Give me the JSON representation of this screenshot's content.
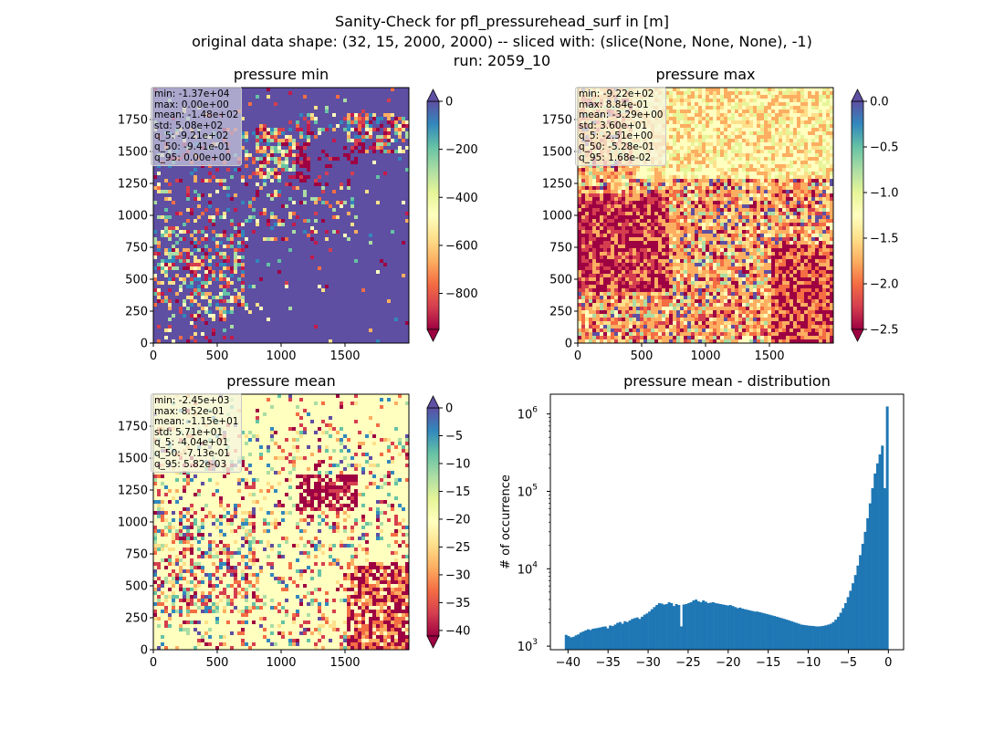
{
  "header": {
    "line1": "Sanity-Check for pfl_pressurehead_surf in [m]",
    "line2": "original data shape: (32, 15, 2000, 2000) -- sliced with: (slice(None, None, None), -1)",
    "line3": "run: 2059_10"
  },
  "chart_data": [
    {
      "type": "heatmap",
      "title": "pressure min",
      "xlim": [
        0,
        2000
      ],
      "ylim": [
        0,
        2000
      ],
      "xticks": [
        "0",
        "500",
        "1000",
        "1500"
      ],
      "yticks": [
        "0",
        "250",
        "500",
        "750",
        "1000",
        "1250",
        "1500",
        "1750"
      ],
      "colormap": "Spectral",
      "colorbar": {
        "ticks": [
          "0",
          "−200",
          "−400",
          "−600",
          "−800"
        ],
        "range": [
          -950,
          0
        ],
        "extend": "both"
      },
      "stats": [
        "min: -1.37e+04",
        "max: 0.00e+00",
        "mean: -1.48e+02",
        "std: 5.08e+02",
        "q_5: -9.21e+02",
        "q_50: -9.41e-01",
        "q_95: 0.00e+00"
      ]
    },
    {
      "type": "heatmap",
      "title": "pressure max",
      "xlim": [
        0,
        2000
      ],
      "ylim": [
        0,
        2000
      ],
      "xticks": [
        "0",
        "500",
        "1000",
        "1500"
      ],
      "yticks": [
        "0",
        "250",
        "500",
        "750",
        "1000",
        "1250",
        "1500",
        "1750"
      ],
      "colormap": "Spectral",
      "colorbar": {
        "ticks": [
          "0.0",
          "−0.5",
          "−1.0",
          "−1.5",
          "−2.0",
          "−2.5"
        ],
        "range": [
          -2.5,
          0
        ],
        "extend": "both"
      },
      "stats": [
        "min: -9.22e+02",
        "max: 8.84e-01",
        "mean: -3.29e+00",
        "std: 3.60e+01",
        "q_5: -2.51e+00",
        "q_50: -5.28e-01",
        "q_95: 1.68e-02"
      ]
    },
    {
      "type": "heatmap",
      "title": "pressure mean",
      "xlim": [
        0,
        2000
      ],
      "ylim": [
        0,
        2000
      ],
      "xticks": [
        "0",
        "500",
        "1000",
        "1500"
      ],
      "yticks": [
        "0",
        "250",
        "500",
        "750",
        "1000",
        "1250",
        "1500",
        "1750"
      ],
      "colormap": "Spectral",
      "colorbar": {
        "ticks": [
          "0",
          "−5",
          "−10",
          "−15",
          "−20",
          "−25",
          "−30",
          "−35",
          "−40"
        ],
        "range": [
          -41,
          0
        ],
        "extend": "both"
      },
      "stats": [
        "min: -2.45e+03",
        "max: 8.52e-01",
        "mean: -1.15e+01",
        "std: 5.71e+01",
        "q_5: -4.04e+01",
        "q_50: -7.13e-01",
        "q_95: 5.82e-03"
      ]
    },
    {
      "type": "bar",
      "title": "pressure mean - distribution",
      "ylabel": "# of occurrence",
      "yscale": "log",
      "xlim": [
        -42.2,
        1.9
      ],
      "ylim": [
        900,
        1800000
      ],
      "xticks": [
        "−40",
        "−35",
        "−30",
        "−25",
        "−20",
        "−15",
        "−10",
        "−5",
        "0"
      ],
      "xtick_values": [
        -40,
        -35,
        -30,
        -25,
        -20,
        -15,
        -10,
        -5,
        0
      ],
      "yticks": [
        "10",
        "10",
        "10",
        "10"
      ],
      "ytick_exponents": [
        "3",
        "4",
        "5",
        "6"
      ],
      "ytick_values": [
        1000,
        10000,
        100000,
        1000000
      ],
      "bar_color": "#1f77b4",
      "bin_range": [
        -40.4,
        0.0
      ],
      "counts": [
        1400,
        1350,
        1300,
        1320,
        1380,
        1420,
        1500,
        1550,
        1600,
        1650,
        1620,
        1680,
        1700,
        1720,
        1750,
        1780,
        1800,
        1700,
        1850,
        1820,
        1900,
        2000,
        2050,
        1950,
        2100,
        2050,
        2150,
        2250,
        2300,
        2350,
        2250,
        2400,
        2550,
        2650,
        2800,
        3000,
        3200,
        3400,
        3600,
        3550,
        3450,
        3500,
        3700,
        3600,
        3300,
        3500,
        3400,
        1800,
        3450,
        3500,
        3600,
        3700,
        3900,
        4000,
        3800,
        3700,
        3900,
        3750,
        3600,
        3650,
        3700,
        3600,
        3550,
        3500,
        3450,
        3400,
        3350,
        3400,
        3300,
        3200,
        3100,
        3150,
        3050,
        3000,
        2950,
        2900,
        2850,
        2800,
        2800,
        2750,
        2700,
        2650,
        2600,
        2550,
        2500,
        2450,
        2400,
        2350,
        2300,
        2250,
        2200,
        2150,
        2100,
        2050,
        2000,
        1950,
        1900,
        1880,
        1860,
        1840,
        1830,
        1820,
        1800,
        1800,
        1810,
        1830,
        1860,
        1900,
        1950,
        2050,
        2200,
        2400,
        2700,
        3100,
        3600,
        4300,
        5200,
        6500,
        8300,
        11000,
        15000,
        21000,
        30000,
        45000,
        70000,
        110000,
        170000,
        230000,
        300000,
        390000,
        110000,
        1250000
      ]
    }
  ]
}
